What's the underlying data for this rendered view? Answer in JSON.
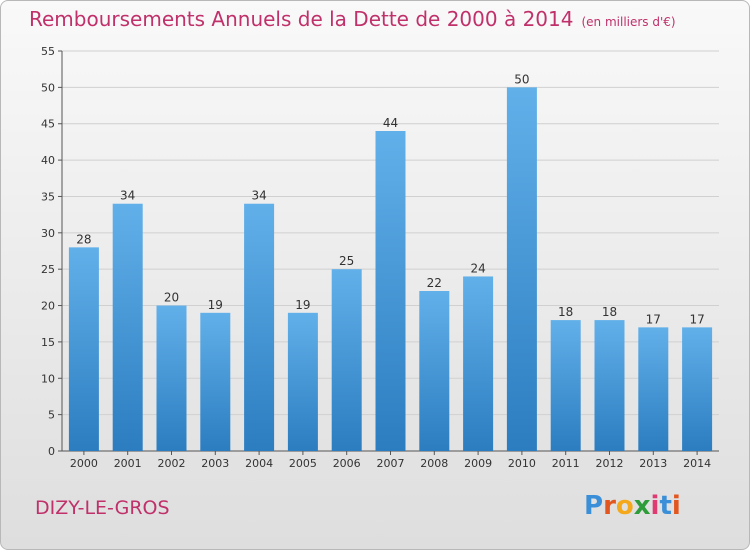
{
  "title": "Remboursements Annuels de la Dette de 2000 à 2014",
  "unit_label": "(en milliers d'€)",
  "commune": "DIZY-LE-GROS",
  "logo": {
    "text": "Proxiti",
    "letters": [
      "P",
      "r",
      "o",
      "x",
      "i",
      "t",
      "i"
    ],
    "colors": [
      "#3a8fd8",
      "#e2561f",
      "#f4a81c",
      "#2f9c3a",
      "#e03a73",
      "#3a8fd8",
      "#e2561f"
    ]
  },
  "colors": {
    "title": "#c0306a",
    "bar_top": "#62b0ea",
    "bar_bottom": "#2b7dc0",
    "grid": "#d0d0d0",
    "axis": "#555555"
  },
  "chart_data": {
    "type": "bar",
    "categories": [
      "2000",
      "2001",
      "2002",
      "2003",
      "2004",
      "2005",
      "2006",
      "2007",
      "2008",
      "2009",
      "2010",
      "2011",
      "2012",
      "2013",
      "2014"
    ],
    "values": [
      28,
      34,
      20,
      19,
      34,
      19,
      25,
      44,
      22,
      24,
      50,
      18,
      18,
      17,
      17
    ],
    "ylim": [
      0,
      55
    ],
    "yticks": [
      0,
      5,
      10,
      15,
      20,
      25,
      30,
      35,
      40,
      45,
      50,
      55
    ],
    "grid": true,
    "data_labels": true
  }
}
